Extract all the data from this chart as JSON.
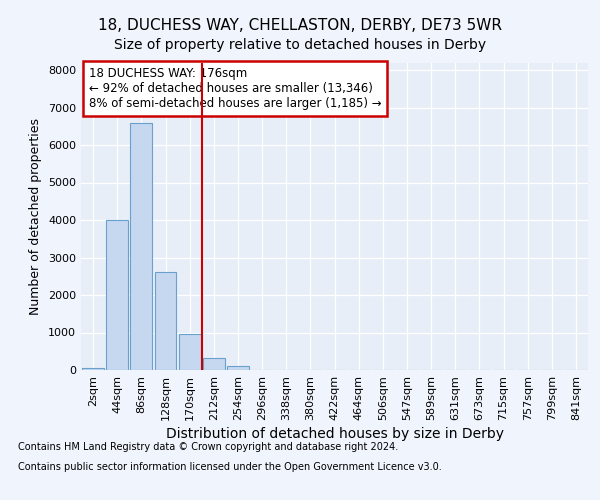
{
  "title_line1": "18, DUCHESS WAY, CHELLASTON, DERBY, DE73 5WR",
  "title_line2": "Size of property relative to detached houses in Derby",
  "xlabel": "Distribution of detached houses by size in Derby",
  "ylabel": "Number of detached properties",
  "categories": [
    "2sqm",
    "44sqm",
    "86sqm",
    "128sqm",
    "170sqm",
    "212sqm",
    "254sqm",
    "296sqm",
    "338sqm",
    "380sqm",
    "422sqm",
    "464sqm",
    "506sqm",
    "547sqm",
    "589sqm",
    "631sqm",
    "673sqm",
    "715sqm",
    "757sqm",
    "799sqm",
    "841sqm"
  ],
  "values": [
    50,
    4000,
    6600,
    2620,
    950,
    330,
    120,
    0,
    0,
    0,
    0,
    0,
    0,
    0,
    0,
    0,
    0,
    0,
    0,
    0,
    0
  ],
  "bar_color": "#c5d8f0",
  "bar_edge_color": "#6aa0cc",
  "vline_x": 4.5,
  "vline_color": "#cc0000",
  "annotation_text": "18 DUCHESS WAY: 176sqm\n← 92% of detached houses are smaller (13,346)\n8% of semi-detached houses are larger (1,185) →",
  "annotation_box_color": "#cc0000",
  "ylim": [
    0,
    8200
  ],
  "yticks": [
    0,
    1000,
    2000,
    3000,
    4000,
    5000,
    6000,
    7000,
    8000
  ],
  "footer_line1": "Contains HM Land Registry data © Crown copyright and database right 2024.",
  "footer_line2": "Contains public sector information licensed under the Open Government Licence v3.0.",
  "bg_color": "#f0f4fc",
  "plot_bg_color": "#e8eef8",
  "title1_fontsize": 11,
  "title2_fontsize": 10,
  "xlabel_fontsize": 10,
  "ylabel_fontsize": 9,
  "tick_fontsize": 8,
  "ann_fontsize": 8.5,
  "footer_fontsize": 7
}
